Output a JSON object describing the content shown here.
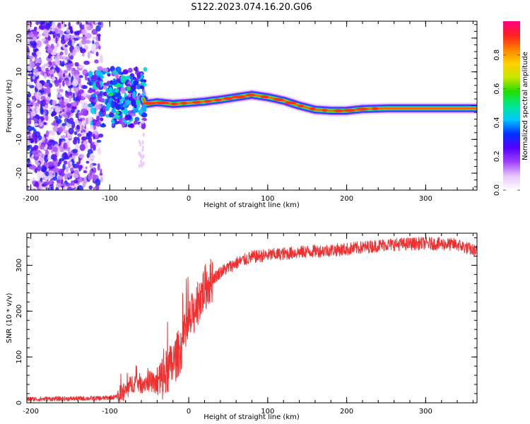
{
  "title": "S122.2023.074.16.20.G06",
  "chart_data": [
    {
      "type": "heatmap",
      "xlabel": "Height of straight line (km)",
      "ylabel": "Frequency (Hz)",
      "xlim": [
        -205,
        365
      ],
      "ylim": [
        -25,
        25
      ],
      "xticks": [
        -200,
        -100,
        0,
        100,
        200,
        300
      ],
      "yticks": [
        -20,
        -10,
        0,
        10,
        20
      ],
      "colorbar": {
        "label": "Normalized spectral amplitude",
        "range": [
          0,
          1
        ],
        "ticks": [
          0.0,
          0.2,
          0.4,
          0.6,
          0.8
        ],
        "colormap": [
          "#ffffff",
          "#e8c8ff",
          "#a040ff",
          "#5500ff",
          "#0030ff",
          "#00c8ff",
          "#00e890",
          "#22dd00",
          "#c8e600",
          "#ffd000",
          "#ff8000",
          "#ff2020",
          "#ff0080"
        ]
      },
      "ridge": [
        {
          "x": -62,
          "y": 4
        },
        {
          "x": -55,
          "y": 0.5
        },
        {
          "x": -40,
          "y": 1
        },
        {
          "x": -20,
          "y": 0.5
        },
        {
          "x": 0,
          "y": 0.8
        },
        {
          "x": 20,
          "y": 1.2
        },
        {
          "x": 40,
          "y": 1.8
        },
        {
          "x": 60,
          "y": 2.5
        },
        {
          "x": 80,
          "y": 3.2
        },
        {
          "x": 100,
          "y": 2.5
        },
        {
          "x": 120,
          "y": 1.5
        },
        {
          "x": 140,
          "y": 0
        },
        {
          "x": 160,
          "y": -1.2
        },
        {
          "x": 180,
          "y": -1.5
        },
        {
          "x": 200,
          "y": -1.5
        },
        {
          "x": 220,
          "y": -1
        },
        {
          "x": 250,
          "y": -0.8
        },
        {
          "x": 300,
          "y": -0.8
        },
        {
          "x": 365,
          "y": -0.8
        }
      ]
    },
    {
      "type": "line",
      "xlabel": "Height of straight line (km)",
      "ylabel": "SNR (10 * v/v)",
      "xlim": [
        -205,
        365
      ],
      "ylim": [
        0,
        370
      ],
      "xticks": [
        -200,
        -100,
        0,
        100,
        200,
        300
      ],
      "yticks": [
        0,
        100,
        200,
        300
      ],
      "color": "#f03030",
      "series": [
        {
          "x": [
            -205,
            -150,
            -110,
            -90,
            -80,
            -70,
            -60,
            -50,
            -40,
            -30,
            -20,
            -10,
            0,
            10,
            20,
            30,
            40,
            60,
            80,
            100,
            150,
            200,
            250,
            300,
            340,
            365
          ],
          "y": [
            8,
            9,
            10,
            13,
            25,
            45,
            42,
            48,
            40,
            60,
            85,
            120,
            170,
            215,
            250,
            270,
            285,
            305,
            318,
            322,
            330,
            335,
            345,
            348,
            345,
            330
          ]
        }
      ]
    }
  ]
}
